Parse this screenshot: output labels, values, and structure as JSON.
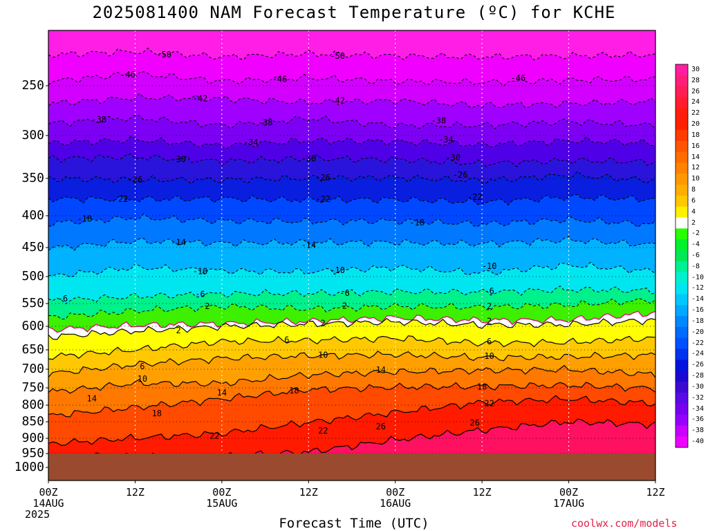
{
  "chart_data": {
    "type": "heatmap",
    "title": "2025081400 NAM Forecast Temperature (ºC) for KCHE",
    "xlabel": "Forecast Time (UTC)",
    "ylabel": "",
    "credit": "coolwx.com/models",
    "y_axis": {
      "scale": "pressure (inverted)",
      "ticks": [
        250,
        300,
        350,
        400,
        450,
        500,
        550,
        600,
        650,
        700,
        750,
        800,
        850,
        900,
        950,
        1000
      ]
    },
    "x_axis": {
      "range_hours": [
        0,
        84
      ],
      "ticks": [
        {
          "hour": 0,
          "label": "00Z",
          "sub": "14AUG",
          "sub2": "2025"
        },
        {
          "hour": 12,
          "label": "12Z",
          "sub": "",
          "sub2": ""
        },
        {
          "hour": 24,
          "label": "00Z",
          "sub": "15AUG",
          "sub2": ""
        },
        {
          "hour": 36,
          "label": "12Z",
          "sub": "",
          "sub2": ""
        },
        {
          "hour": 48,
          "label": "00Z",
          "sub": "16AUG",
          "sub2": ""
        },
        {
          "hour": 60,
          "label": "12Z",
          "sub": "",
          "sub2": ""
        },
        {
          "hour": 72,
          "label": "00Z",
          "sub": "17AUG",
          "sub2": ""
        },
        {
          "hour": 84,
          "label": "12Z",
          "sub": "",
          "sub2": ""
        }
      ]
    },
    "colorbar_labels": [
      "30",
      "28",
      "26",
      "24",
      "22",
      "20",
      "18",
      "16",
      "14",
      "12",
      "10",
      "8",
      "6",
      "4",
      "2",
      "-2",
      "-4",
      "-6",
      "-8",
      "-10",
      "-12",
      "-14",
      "-16",
      "-18",
      "-20",
      "-22",
      "-24",
      "-26",
      "-28",
      "-30",
      "-32",
      "-34",
      "-36",
      "-38",
      "-40"
    ],
    "colorbar_colors": [
      "#ff1ea0",
      "#ff1d7a",
      "#ff1d55",
      "#ff1d30",
      "#ff1d0d",
      "#ff2000",
      "#ff3b00",
      "#ff5500",
      "#ff6c00",
      "#ff8200",
      "#ff9800",
      "#ffae00",
      "#ffc800",
      "#fff000",
      "#ffffff",
      "#28ff00",
      "#00f02c",
      "#00e857",
      "#00f096",
      "#00f0d2",
      "#00e6f0",
      "#00c8ff",
      "#00a8ff",
      "#0088ff",
      "#006bff",
      "#0050ff",
      "#0032f0",
      "#0014e0",
      "#1a0ad2",
      "#3c0ad2",
      "#5a0ae6",
      "#7800f0",
      "#9600ff",
      "#c800ff",
      "#f000ff"
    ],
    "ground_color": "#9a4a2e",
    "ground_level_hpa": 950,
    "series": [
      {
        "name": "-50",
        "type": "dashed",
        "values": [
          [
            0,
            222
          ],
          [
            12,
            219
          ],
          [
            24,
            224
          ],
          [
            36,
            221
          ],
          [
            48,
            223
          ],
          [
            60,
            224
          ],
          [
            72,
            223
          ],
          [
            84,
            222
          ]
        ]
      },
      {
        "name": "-46",
        "type": "dashed",
        "values": [
          [
            0,
            246
          ],
          [
            12,
            239
          ],
          [
            24,
            246
          ],
          [
            36,
            243
          ],
          [
            48,
            246
          ],
          [
            60,
            247
          ],
          [
            72,
            245
          ],
          [
            84,
            244
          ]
        ]
      },
      {
        "name": "-42",
        "type": "dashed",
        "values": [
          [
            0,
            268
          ],
          [
            12,
            262
          ],
          [
            24,
            263
          ],
          [
            36,
            267
          ],
          [
            48,
            265
          ],
          [
            60,
            270
          ],
          [
            72,
            268
          ],
          [
            84,
            266
          ]
        ]
      },
      {
        "name": "-38",
        "type": "dashed",
        "values": [
          [
            0,
            288
          ],
          [
            12,
            282
          ],
          [
            24,
            290
          ],
          [
            36,
            283
          ],
          [
            48,
            290
          ],
          [
            60,
            290
          ],
          [
            72,
            286
          ],
          [
            84,
            290
          ]
        ]
      },
      {
        "name": "-34",
        "type": "dashed",
        "values": [
          [
            0,
            309
          ],
          [
            12,
            305
          ],
          [
            24,
            312
          ],
          [
            36,
            306
          ],
          [
            48,
            307
          ],
          [
            60,
            311
          ],
          [
            72,
            306
          ],
          [
            84,
            309
          ]
        ]
      },
      {
        "name": "-30",
        "type": "dashed",
        "values": [
          [
            0,
            327
          ],
          [
            12,
            325
          ],
          [
            24,
            330
          ],
          [
            36,
            327
          ],
          [
            48,
            328
          ],
          [
            60,
            333
          ],
          [
            72,
            329
          ],
          [
            84,
            331
          ]
        ]
      },
      {
        "name": "-26",
        "type": "dashed",
        "values": [
          [
            0,
            350
          ],
          [
            12,
            352
          ],
          [
            24,
            352
          ],
          [
            36,
            350
          ],
          [
            48,
            349
          ],
          [
            60,
            353
          ],
          [
            72,
            346
          ],
          [
            84,
            353
          ]
        ]
      },
      {
        "name": "-22",
        "type": "dashed",
        "values": [
          [
            0,
            377
          ],
          [
            12,
            378
          ],
          [
            24,
            377
          ],
          [
            36,
            379
          ],
          [
            48,
            378
          ],
          [
            60,
            382
          ],
          [
            72,
            375
          ],
          [
            84,
            378
          ]
        ]
      },
      {
        "name": "-18",
        "type": "dashed",
        "values": [
          [
            0,
            412
          ],
          [
            12,
            403
          ],
          [
            24,
            408
          ],
          [
            36,
            409
          ],
          [
            48,
            408
          ],
          [
            60,
            413
          ],
          [
            72,
            406
          ],
          [
            84,
            414
          ]
        ]
      },
      {
        "name": "-14",
        "type": "dashed",
        "values": [
          [
            0,
            451
          ],
          [
            12,
            440
          ],
          [
            24,
            443
          ],
          [
            36,
            442
          ],
          [
            48,
            442
          ],
          [
            60,
            444
          ],
          [
            72,
            438
          ],
          [
            84,
            446
          ]
        ]
      },
      {
        "name": "-10",
        "type": "dashed",
        "values": [
          [
            0,
            500
          ],
          [
            12,
            484
          ],
          [
            24,
            490
          ],
          [
            36,
            492
          ],
          [
            48,
            484
          ],
          [
            60,
            494
          ],
          [
            72,
            480
          ],
          [
            84,
            491
          ]
        ]
      },
      {
        "name": "-6",
        "type": "dashed",
        "values": [
          [
            0,
            545
          ],
          [
            12,
            537
          ],
          [
            24,
            532
          ],
          [
            36,
            531
          ],
          [
            48,
            528
          ],
          [
            60,
            529
          ],
          [
            72,
            524
          ],
          [
            84,
            526
          ]
        ]
      },
      {
        "name": "-2",
        "type": "dashed",
        "values": [
          [
            0,
            580
          ],
          [
            12,
            566
          ],
          [
            24,
            556
          ],
          [
            36,
            562
          ],
          [
            48,
            556
          ],
          [
            60,
            558
          ],
          [
            72,
            553
          ],
          [
            84,
            543
          ]
        ]
      },
      {
        "name": "0",
        "type": "freezing",
        "values": [
          [
            0,
            607
          ],
          [
            12,
            598
          ],
          [
            24,
            594
          ],
          [
            36,
            589
          ],
          [
            48,
            581
          ],
          [
            60,
            587
          ],
          [
            72,
            586
          ],
          [
            84,
            570
          ]
        ]
      },
      {
        "name": "2",
        "type": "solid",
        "values": [
          [
            0,
            622
          ],
          [
            12,
            610
          ],
          [
            24,
            600
          ],
          [
            36,
            595
          ],
          [
            48,
            590
          ],
          [
            60,
            597
          ],
          [
            72,
            596
          ],
          [
            84,
            586
          ]
        ]
      },
      {
        "name": "6",
        "type": "solid",
        "values": [
          [
            0,
            668
          ],
          [
            12,
            650
          ],
          [
            24,
            632
          ],
          [
            36,
            630
          ],
          [
            48,
            625
          ],
          [
            60,
            636
          ],
          [
            72,
            634
          ],
          [
            84,
            625
          ]
        ]
      },
      {
        "name": "10",
        "type": "solid",
        "values": [
          [
            0,
            712
          ],
          [
            12,
            688
          ],
          [
            24,
            672
          ],
          [
            36,
            665
          ],
          [
            48,
            662
          ],
          [
            60,
            670
          ],
          [
            72,
            668
          ],
          [
            84,
            663
          ]
        ]
      },
      {
        "name": "14",
        "type": "solid",
        "values": [
          [
            0,
            762
          ],
          [
            12,
            738
          ],
          [
            24,
            738
          ],
          [
            36,
            715
          ],
          [
            48,
            707
          ],
          [
            60,
            703
          ],
          [
            72,
            701
          ],
          [
            84,
            714
          ]
        ]
      },
      {
        "name": "18",
        "type": "solid",
        "values": [
          [
            0,
            832
          ],
          [
            12,
            807
          ],
          [
            24,
            782
          ],
          [
            36,
            755
          ],
          [
            48,
            748
          ],
          [
            60,
            746
          ],
          [
            72,
            743
          ],
          [
            84,
            751
          ]
        ]
      },
      {
        "name": "22",
        "type": "solid",
        "values": [
          [
            0,
            918
          ],
          [
            12,
            899
          ],
          [
            24,
            885
          ],
          [
            36,
            852
          ],
          [
            48,
            822
          ],
          [
            60,
            792
          ],
          [
            72,
            782
          ],
          [
            84,
            795
          ]
        ]
      },
      {
        "name": "26",
        "type": "solid",
        "values": [
          [
            0,
            960
          ],
          [
            12,
            960
          ],
          [
            24,
            960
          ],
          [
            36,
            945
          ],
          [
            48,
            905
          ],
          [
            60,
            875
          ],
          [
            72,
            850
          ],
          [
            84,
            858
          ]
        ]
      }
    ],
    "contour_labels": [
      {
        "text": "-50",
        "hour": 16,
        "p": 222
      },
      {
        "text": "-50",
        "hour": 40,
        "p": 223
      },
      {
        "text": "-46",
        "hour": 11,
        "p": 240
      },
      {
        "text": "-46",
        "hour": 32,
        "p": 244
      },
      {
        "text": "-46",
        "hour": 65,
        "p": 243
      },
      {
        "text": "-42",
        "hour": 21,
        "p": 263
      },
      {
        "text": "-42",
        "hour": 40,
        "p": 265
      },
      {
        "text": "-38",
        "hour": 7,
        "p": 284
      },
      {
        "text": "-38",
        "hour": 30,
        "p": 287
      },
      {
        "text": "-38",
        "hour": 54,
        "p": 285
      },
      {
        "text": "-34",
        "hour": 28,
        "p": 308
      },
      {
        "text": "-34",
        "hour": 55,
        "p": 305
      },
      {
        "text": "-30",
        "hour": 18,
        "p": 328
      },
      {
        "text": "-30",
        "hour": 36,
        "p": 327
      },
      {
        "text": "-30",
        "hour": 56,
        "p": 326
      },
      {
        "text": "-26",
        "hour": 12,
        "p": 352
      },
      {
        "text": "-26",
        "hour": 38,
        "p": 349
      },
      {
        "text": "-26",
        "hour": 57,
        "p": 346
      },
      {
        "text": "-22",
        "hour": 10,
        "p": 378
      },
      {
        "text": "-22",
        "hour": 38,
        "p": 378
      },
      {
        "text": "-22",
        "hour": 59,
        "p": 375
      },
      {
        "text": "-18",
        "hour": 5,
        "p": 405
      },
      {
        "text": "-18",
        "hour": 51,
        "p": 411
      },
      {
        "text": "-14",
        "hour": 18,
        "p": 442
      },
      {
        "text": "-14",
        "hour": 36,
        "p": 446
      },
      {
        "text": "-10",
        "hour": 21,
        "p": 491
      },
      {
        "text": "-10",
        "hour": 40,
        "p": 489
      },
      {
        "text": "-10",
        "hour": 61,
        "p": 482
      },
      {
        "text": "-6",
        "hour": 2,
        "p": 541
      },
      {
        "text": "-6",
        "hour": 21,
        "p": 533
      },
      {
        "text": "-6",
        "hour": 41,
        "p": 531
      },
      {
        "text": "-6",
        "hour": 61,
        "p": 527
      },
      {
        "text": "2",
        "hour": 22,
        "p": 556
      },
      {
        "text": "2",
        "hour": 41,
        "p": 555
      },
      {
        "text": "2",
        "hour": 61,
        "p": 556
      },
      {
        "text": "2",
        "hour": 18,
        "p": 609
      },
      {
        "text": "2",
        "hour": 38,
        "p": 593
      },
      {
        "text": "2",
        "hour": 61,
        "p": 589
      },
      {
        "text": "6",
        "hour": 33,
        "p": 629
      },
      {
        "text": "6",
        "hour": 61,
        "p": 632
      },
      {
        "text": "6",
        "hour": 13,
        "p": 693
      },
      {
        "text": "10",
        "hour": 38,
        "p": 663
      },
      {
        "text": "10",
        "hour": 61,
        "p": 666
      },
      {
        "text": "10",
        "hour": 13,
        "p": 726
      },
      {
        "text": "14",
        "hour": 46,
        "p": 702
      },
      {
        "text": "14",
        "hour": 24,
        "p": 764
      },
      {
        "text": "14",
        "hour": 6,
        "p": 781
      },
      {
        "text": "18",
        "hour": 34,
        "p": 758
      },
      {
        "text": "18",
        "hour": 60,
        "p": 747
      },
      {
        "text": "18",
        "hour": 15,
        "p": 825
      },
      {
        "text": "22",
        "hour": 61,
        "p": 795
      },
      {
        "text": "22",
        "hour": 38,
        "p": 877
      },
      {
        "text": "22",
        "hour": 23,
        "p": 893
      },
      {
        "text": "26",
        "hour": 46,
        "p": 865
      },
      {
        "text": "26",
        "hour": 59,
        "p": 853
      }
    ]
  }
}
